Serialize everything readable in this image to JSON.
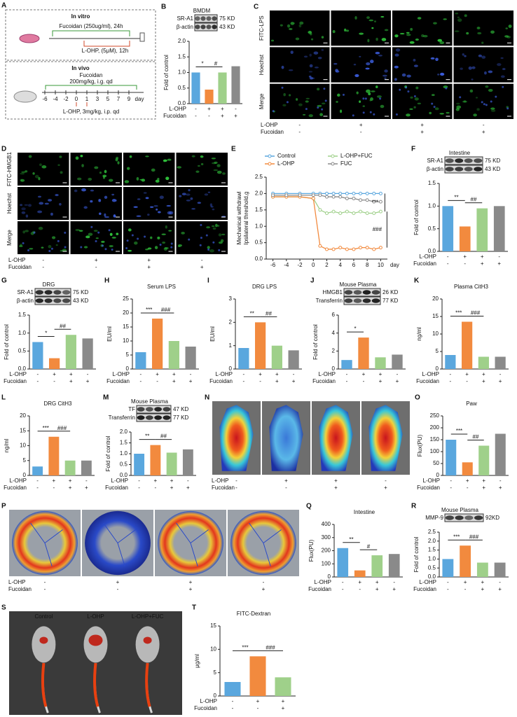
{
  "scheme": {
    "letter": "A",
    "in_vitro": {
      "title": "In vitro",
      "fucoidan": "Fucoidan (250ug/ml), 24h",
      "lohp": "L-OHP, (5μM), 12h"
    },
    "in_vivo": {
      "title": "In vivo",
      "fucoidan": "Fucoidan",
      "fucoidan_dose": "200mg/kg, i.g. qd",
      "lohp": "L-OHP, 3mg/kg, i.p. qd",
      "timeline": [
        "-6",
        "-4",
        "-2",
        "0",
        "1",
        "3",
        "5",
        "7",
        "9",
        "day"
      ]
    }
  },
  "images": {
    "C": {
      "letter": "C",
      "style": "fluor",
      "row_labels": [
        "FITC-LPS",
        "Hoechst",
        "Merge"
      ],
      "row_colors": [
        "#2fbf3a",
        "#3a5bd8",
        "#2fbf3a"
      ],
      "conditions": [
        {
          "name": "L-OHP",
          "signs": [
            "-",
            "+",
            "+",
            "-"
          ]
        },
        {
          "name": "Fucoidan",
          "signs": [
            "-",
            "-",
            "+",
            "+"
          ]
        }
      ]
    },
    "D": {
      "letter": "D",
      "style": "fluor",
      "row_labels": [
        "FITC-HMGB1",
        "Hoechst",
        "Merge"
      ],
      "row_colors": [
        "#2fbf3a",
        "#3a5bd8",
        "#2fbf3a"
      ],
      "conditions": [
        {
          "name": "L-OHP",
          "signs": [
            "-",
            "+",
            "+",
            "-"
          ]
        },
        {
          "name": "Fucoidan",
          "signs": [
            "-",
            "-",
            "+",
            "+"
          ]
        }
      ]
    },
    "N": {
      "letter": "N",
      "style": "paw",
      "conditions": [
        {
          "name": "L-OHP",
          "signs": [
            "-",
            "+",
            "+",
            "-"
          ]
        },
        {
          "name": "Fucoidan",
          "signs": [
            "-",
            "-",
            "+",
            "+"
          ]
        }
      ]
    },
    "P": {
      "letter": "P",
      "style": "gut",
      "conditions": [
        {
          "name": "L-OHP",
          "signs": [
            "-",
            "+",
            "+",
            "-"
          ]
        },
        {
          "name": "Fucoidan",
          "signs": [
            "-",
            "-",
            "+",
            "+"
          ]
        }
      ]
    },
    "S": {
      "letter": "S",
      "style": "ivis",
      "col_labels": [
        "Control",
        "L-OHP",
        "L-OHP+FUC"
      ]
    }
  },
  "chart_data": [
    {
      "type": "bar",
      "letter": "B",
      "blot": {
        "title": "BMDM",
        "rows": [
          {
            "name": "SR-A1",
            "size": "75 KD"
          },
          {
            "name": "β-actin",
            "size": "43 KD"
          }
        ]
      },
      "ylabel": "Fold of control",
      "ylim": [
        0,
        2
      ],
      "yticks": [
        {
          "value": 0,
          "label": "0.0"
        },
        {
          "value": 0.5,
          "label": "0.5"
        },
        {
          "value": 1,
          "label": "1.0"
        },
        {
          "value": 1.5,
          "label": "1.5"
        },
        {
          "value": 2,
          "label": "2.0"
        }
      ],
      "values": [
        1.0,
        0.45,
        1.0,
        1.2
      ],
      "colors": [
        "#5aa7de",
        "#f28a3e",
        "#9fd08a",
        "#8a8a8a"
      ],
      "annotations": [
        "*",
        "#"
      ],
      "conditions": [
        {
          "name": "L-OHP",
          "signs": [
            "-",
            "+",
            "+",
            "-"
          ]
        },
        {
          "name": "Fucoidan",
          "signs": [
            "-",
            "-",
            "+",
            "+"
          ]
        }
      ]
    },
    {
      "type": "line",
      "letter": "E",
      "ylabel": [
        "Mechanical withdrawl",
        "Ipsilateral threshold,g"
      ],
      "xlabel": "day",
      "x": [
        -6,
        -4,
        -2,
        0,
        1,
        2,
        3,
        4,
        5,
        6,
        7,
        8,
        9,
        10
      ],
      "xlim": [
        -7,
        11
      ],
      "xticks": [
        -6,
        -4,
        -2,
        0,
        2,
        4,
        6,
        8,
        10
      ],
      "ylim": [
        0,
        2.5
      ],
      "yticks": [
        {
          "value": 0,
          "label": "0.0"
        },
        {
          "value": 0.5,
          "label": "0.5"
        },
        {
          "value": 1,
          "label": "1.0"
        },
        {
          "value": 1.5,
          "label": "1.5"
        },
        {
          "value": 2,
          "label": "2.0"
        },
        {
          "value": 2.5,
          "label": "2.5"
        }
      ],
      "series": [
        {
          "name": "Control",
          "color": "#5aa7de",
          "values": [
            2.0,
            2.0,
            2.0,
            2.0,
            2.0,
            2.0,
            2.0,
            2.0,
            2.0,
            2.0,
            2.0,
            2.0,
            2.0,
            2.0
          ]
        },
        {
          "name": "L-OHP+FUC",
          "color": "#9fd08a",
          "values": [
            1.9,
            1.9,
            1.9,
            1.85,
            1.5,
            1.4,
            1.45,
            1.4,
            1.45,
            1.4,
            1.45,
            1.4,
            1.4,
            1.45
          ]
        },
        {
          "name": "L-OHP",
          "color": "#f28a3e",
          "values": [
            1.9,
            1.9,
            1.9,
            1.85,
            0.4,
            0.3,
            0.3,
            0.35,
            0.3,
            0.3,
            0.35,
            0.35,
            0.3,
            0.35
          ]
        },
        {
          "name": "FUC",
          "color": "#8a8a8a",
          "values": [
            1.95,
            1.95,
            1.95,
            1.95,
            1.95,
            1.9,
            1.9,
            1.9,
            1.85,
            1.85,
            1.8,
            1.8,
            1.75,
            1.75
          ]
        }
      ],
      "annotations": [
        "***",
        "###"
      ]
    },
    {
      "type": "bar",
      "letter": "F",
      "blot": {
        "title": "Intestine",
        "rows": [
          {
            "name": "SR-A1",
            "size": "75 KD"
          },
          {
            "name": "β-actin",
            "size": "43 KD"
          }
        ]
      },
      "ylabel": "Fold of control",
      "ylim": [
        0,
        1.5
      ],
      "yticks": [
        {
          "value": 0,
          "label": "0.0"
        },
        {
          "value": 0.5,
          "label": "0.5"
        },
        {
          "value": 1,
          "label": "1.0"
        },
        {
          "value": 1.5,
          "label": "1.5"
        }
      ],
      "values": [
        1.0,
        0.55,
        0.95,
        1.0
      ],
      "colors": [
        "#5aa7de",
        "#f28a3e",
        "#9fd08a",
        "#8a8a8a"
      ],
      "annotations": [
        "**",
        "##"
      ],
      "conditions": [
        {
          "name": "L-OHP",
          "signs": [
            "-",
            "+",
            "+",
            "-"
          ]
        },
        {
          "name": "Fucoidan",
          "signs": [
            "-",
            "-",
            "+",
            "+"
          ]
        }
      ]
    },
    {
      "type": "bar",
      "letter": "G",
      "blot": {
        "title": "DRG",
        "rows": [
          {
            "name": "SR-A1",
            "size": "75 KD"
          },
          {
            "name": "β-actin",
            "size": "43 KD"
          }
        ]
      },
      "ylabel": "Fold of control",
      "ylim": [
        0,
        1.5
      ],
      "yticks": [
        {
          "value": 0,
          "label": "0.0"
        },
        {
          "value": 0.5,
          "label": "0.5"
        },
        {
          "value": 1,
          "label": "1.0"
        },
        {
          "value": 1.5,
          "label": "1.5"
        }
      ],
      "values": [
        0.75,
        0.3,
        0.95,
        0.85
      ],
      "colors": [
        "#5aa7de",
        "#f28a3e",
        "#9fd08a",
        "#8a8a8a"
      ],
      "annotations": [
        "*",
        "##"
      ],
      "conditions": [
        {
          "name": "L-OHP",
          "signs": [
            "-",
            "+",
            "+",
            "-"
          ]
        },
        {
          "name": "Fucoidan",
          "signs": [
            "-",
            "-",
            "+",
            "+"
          ]
        }
      ]
    },
    {
      "type": "bar",
      "letter": "H",
      "title": "Serum LPS",
      "ylabel": "EU/ml",
      "ylim": [
        0,
        25
      ],
      "yticks": [
        0,
        5,
        10,
        15,
        20,
        25
      ],
      "values": [
        6,
        18,
        10,
        8
      ],
      "colors": [
        "#5aa7de",
        "#f28a3e",
        "#9fd08a",
        "#8a8a8a"
      ],
      "annotations": [
        "***",
        "###"
      ],
      "conditions": [
        {
          "name": "L-OHP",
          "signs": [
            "-",
            "+",
            "+",
            "-"
          ]
        },
        {
          "name": "Fucoidan",
          "signs": [
            "-",
            "-",
            "+",
            "+"
          ]
        }
      ]
    },
    {
      "type": "bar",
      "letter": "I",
      "title": "DRG LPS",
      "ylabel": "EU/ml",
      "ylim": [
        0,
        3
      ],
      "yticks": [
        0,
        1,
        2,
        3
      ],
      "values": [
        0.9,
        2.0,
        1.0,
        0.8
      ],
      "colors": [
        "#5aa7de",
        "#f28a3e",
        "#9fd08a",
        "#8a8a8a"
      ],
      "annotations": [
        "**",
        "##"
      ],
      "conditions": [
        {
          "name": "L-OHP",
          "signs": [
            "-",
            "+",
            "+",
            "-"
          ]
        },
        {
          "name": "Fucoidan",
          "signs": [
            "-",
            "-",
            "+",
            "+"
          ]
        }
      ]
    },
    {
      "type": "bar",
      "letter": "J",
      "blot": {
        "title": "Mouse Plasma",
        "rows": [
          {
            "name": "HMGB1",
            "size": "26 KD"
          },
          {
            "name": "Transferrin",
            "size": "77 KD"
          }
        ]
      },
      "ylabel": "Fold of control",
      "ylim": [
        0,
        6
      ],
      "yticks": [
        0,
        2,
        4,
        6
      ],
      "values": [
        1.0,
        3.5,
        1.3,
        1.6
      ],
      "colors": [
        "#5aa7de",
        "#f28a3e",
        "#9fd08a",
        "#8a8a8a"
      ],
      "annotations": [
        "*"
      ],
      "conditions": [
        {
          "name": "L-OHP",
          "signs": [
            "-",
            "+",
            "+",
            "-"
          ]
        },
        {
          "name": "Fucoidan",
          "signs": [
            "-",
            "-",
            "+",
            "+"
          ]
        }
      ]
    },
    {
      "type": "bar",
      "letter": "K",
      "title": "Plasma CitH3",
      "ylabel": "ng/ml",
      "ylim": [
        0,
        20
      ],
      "yticks": [
        0,
        5,
        10,
        15,
        20
      ],
      "values": [
        4,
        13.5,
        3.5,
        3.5
      ],
      "colors": [
        "#5aa7de",
        "#f28a3e",
        "#9fd08a",
        "#8a8a8a"
      ],
      "annotations": [
        "***",
        "###"
      ],
      "conditions": [
        {
          "name": "L-OHP",
          "signs": [
            "-",
            "+",
            "+",
            "-"
          ]
        },
        {
          "name": "Fucoidan",
          "signs": [
            "-",
            "-",
            "+",
            "+"
          ]
        }
      ]
    },
    {
      "type": "bar",
      "letter": "L",
      "title": "DRG CitH3",
      "ylabel": "ng/ml",
      "ylim": [
        0,
        20
      ],
      "yticks": [
        0,
        5,
        10,
        15,
        20
      ],
      "values": [
        3,
        13,
        5,
        5
      ],
      "colors": [
        "#5aa7de",
        "#f28a3e",
        "#9fd08a",
        "#8a8a8a"
      ],
      "annotations": [
        "***",
        "###"
      ],
      "conditions": [
        {
          "name": "L-OHP",
          "signs": [
            "-",
            "+",
            "+",
            "-"
          ]
        },
        {
          "name": "Fucoidan",
          "signs": [
            "-",
            "-",
            "+",
            "+"
          ]
        }
      ]
    },
    {
      "type": "bar",
      "letter": "M",
      "blot": {
        "title": "Mouse Plasma",
        "rows": [
          {
            "name": "TF",
            "size": "47 KD"
          },
          {
            "name": "Transferrin",
            "size": "77 KD"
          }
        ]
      },
      "ylabel": "Fold of control",
      "ylim": [
        0,
        2
      ],
      "yticks": [
        {
          "value": 0,
          "label": "0.0"
        },
        {
          "value": 0.5,
          "label": "0.5"
        },
        {
          "value": 1,
          "label": "1.0"
        },
        {
          "value": 1.5,
          "label": "1.5"
        },
        {
          "value": 2,
          "label": "2.0"
        }
      ],
      "values": [
        1.0,
        1.4,
        1.05,
        1.2
      ],
      "colors": [
        "#5aa7de",
        "#f28a3e",
        "#9fd08a",
        "#8a8a8a"
      ],
      "annotations": [
        "**",
        "##"
      ],
      "conditions": [
        {
          "name": "L-OHP",
          "signs": [
            "-",
            "+",
            "+",
            "-"
          ]
        },
        {
          "name": "Fucoidan",
          "signs": [
            "-",
            "-",
            "+",
            "+"
          ]
        }
      ]
    },
    {
      "type": "bar",
      "letter": "O",
      "title": "Paw",
      "ylabel": "Flux(PU)",
      "ylim": [
        0,
        250
      ],
      "yticks": [
        0,
        50,
        100,
        150,
        200,
        250
      ],
      "values": [
        150,
        55,
        125,
        175
      ],
      "colors": [
        "#5aa7de",
        "#f28a3e",
        "#9fd08a",
        "#8a8a8a"
      ],
      "annotations": [
        "***",
        "##"
      ],
      "conditions": [
        {
          "name": "L-OHP",
          "signs": [
            "-",
            "+",
            "+",
            "-"
          ]
        },
        {
          "name": "Fucoidan",
          "signs": [
            "-",
            "-",
            "+",
            "+"
          ]
        }
      ]
    },
    {
      "type": "bar",
      "letter": "Q",
      "title": "Intestine",
      "ylabel": "Flux(PU)",
      "ylim": [
        0,
        400
      ],
      "yticks": [
        0,
        100,
        200,
        300,
        400
      ],
      "values": [
        220,
        50,
        165,
        175
      ],
      "colors": [
        "#5aa7de",
        "#f28a3e",
        "#9fd08a",
        "#8a8a8a"
      ],
      "annotations": [
        "**",
        "#"
      ],
      "conditions": [
        {
          "name": "L-OHP",
          "signs": [
            "-",
            "+",
            "+",
            "-"
          ]
        },
        {
          "name": "Fucoidan",
          "signs": [
            "-",
            "-",
            "+",
            "+"
          ]
        }
      ]
    },
    {
      "type": "bar",
      "letter": "R",
      "blot": {
        "title": "Mouse Plasma",
        "rows": [
          {
            "name": "MMP-9",
            "size": "92KD"
          }
        ]
      },
      "ylabel": "Fold of control",
      "ylim": [
        0,
        2.5
      ],
      "yticks": [
        {
          "value": 0,
          "label": "0.0"
        },
        {
          "value": 0.5,
          "label": "0.5"
        },
        {
          "value": 1,
          "label": "1.0"
        },
        {
          "value": 1.5,
          "label": "1.5"
        },
        {
          "value": 2,
          "label": "2.0"
        },
        {
          "value": 2.5,
          "label": "2.5"
        }
      ],
      "values": [
        1.0,
        1.75,
        0.8,
        0.8
      ],
      "colors": [
        "#5aa7de",
        "#f28a3e",
        "#9fd08a",
        "#8a8a8a"
      ],
      "annotations": [
        "***",
        "###"
      ],
      "conditions": [
        {
          "name": "L-OHP",
          "signs": [
            "-",
            "+",
            "+",
            "-"
          ]
        },
        {
          "name": "Fucoidan",
          "signs": [
            "-",
            "-",
            "+",
            "+"
          ]
        }
      ]
    },
    {
      "type": "bar",
      "letter": "T",
      "title": "FITC-Dextran",
      "ylabel": "μg/ml",
      "ylim": [
        0,
        15
      ],
      "yticks": [
        0,
        5,
        10,
        15
      ],
      "values": [
        3,
        8.5,
        4
      ],
      "colors": [
        "#5aa7de",
        "#f28a3e",
        "#9fd08a"
      ],
      "annotations": [
        "***",
        "###"
      ],
      "conditions": [
        {
          "name": "L-OHP",
          "signs": [
            "-",
            "+",
            "+"
          ]
        },
        {
          "name": "Fucoidan",
          "signs": [
            "-",
            "-",
            "+"
          ]
        }
      ]
    }
  ]
}
